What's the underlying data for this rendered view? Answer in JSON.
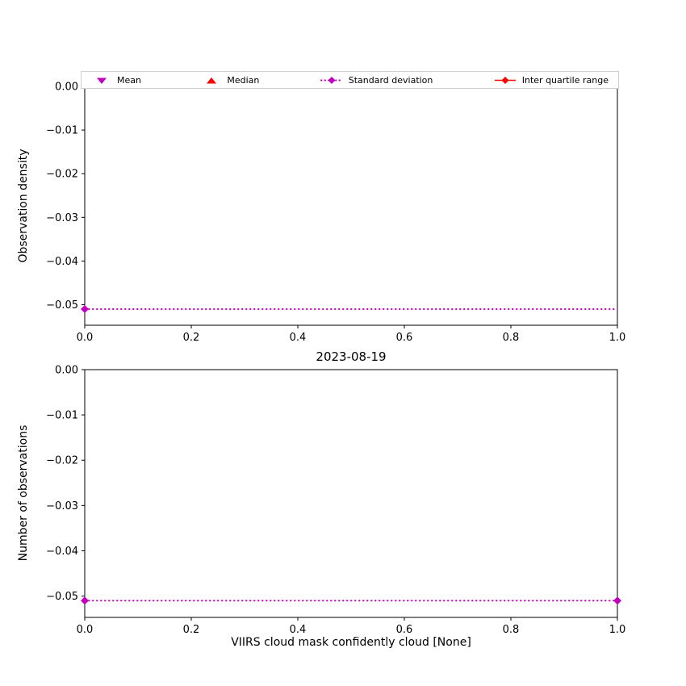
{
  "figure": {
    "background": "#ffffff"
  },
  "legend": {
    "position": "top",
    "entries": [
      {
        "label": "Mean",
        "marker": "triangle-down",
        "color": "#bf00bf"
      },
      {
        "label": "Median",
        "marker": "triangle-up",
        "color": "#ff0000"
      },
      {
        "label": "Standard deviation",
        "marker": "diamond-on-dotted-line",
        "color": "#bf00bf"
      },
      {
        "label": "Inter quartile range",
        "marker": "diamond-on-solid-line",
        "color": "#ff0000"
      }
    ]
  },
  "chart_data": [
    {
      "id": "top",
      "type": "line",
      "title": "",
      "xlabel": "",
      "ylabel": "Observation density",
      "xlim": [
        0.0,
        1.0
      ],
      "ylim": [
        -0.0547,
        0.0
      ],
      "xticks": [
        0.0,
        0.2,
        0.4,
        0.6,
        0.8,
        1.0
      ],
      "yticks": [
        0.0,
        -0.01,
        -0.02,
        -0.03,
        -0.04,
        -0.05
      ],
      "grid": false,
      "series": [
        {
          "name": "Standard deviation",
          "color": "#bf00bf",
          "linestyle": "dotted",
          "marker": "diamond",
          "x": [
            0.0,
            1.0
          ],
          "y": [
            -0.051,
            -0.051
          ],
          "marker_x": [
            0.0
          ]
        }
      ]
    },
    {
      "id": "bottom",
      "type": "line",
      "title": "2023-08-19",
      "xlabel": "VIIRS cloud mask confidently cloud [None]",
      "ylabel": "Number of observations",
      "xlim": [
        0.0,
        1.0
      ],
      "ylim": [
        -0.0547,
        0.0
      ],
      "xticks": [
        0.0,
        0.2,
        0.4,
        0.6,
        0.8,
        1.0
      ],
      "yticks": [
        0.0,
        -0.01,
        -0.02,
        -0.03,
        -0.04,
        -0.05
      ],
      "grid": false,
      "series": [
        {
          "name": "Standard deviation",
          "color": "#bf00bf",
          "linestyle": "dotted",
          "marker": "diamond",
          "x": [
            0.0,
            1.0
          ],
          "y": [
            -0.051,
            -0.051
          ],
          "marker_x": [
            0.0,
            1.0
          ]
        }
      ]
    }
  ]
}
